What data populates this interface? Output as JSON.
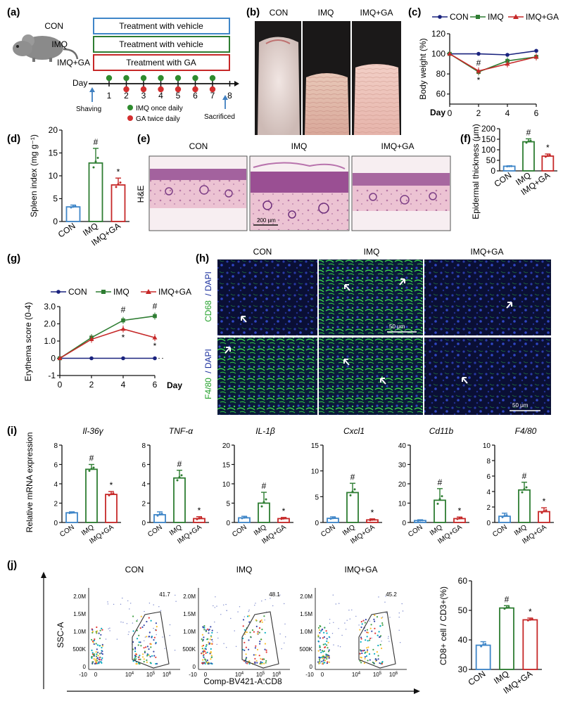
{
  "panels": {
    "a": {
      "label": "(a)",
      "groups": [
        {
          "name": "CON",
          "treatment": "Treatment with vehicle",
          "color": "#3f86c8"
        },
        {
          "name": "IMQ",
          "treatment": "Treatment with vehicle",
          "color": "#2e7d32"
        },
        {
          "name": "IMQ+GA",
          "treatment": "Treatment with GA",
          "color": "#c62828"
        }
      ],
      "day_label": "Day",
      "days": [
        "1",
        "2",
        "3",
        "4",
        "5",
        "6",
        "7",
        "8"
      ],
      "shaving": "Shaving",
      "sacrificed": "Sacrificed",
      "legend_imq": "IMQ once daily",
      "legend_ga": "GA twice daily"
    },
    "b": {
      "label": "(b)",
      "titles": [
        "CON",
        "IMQ",
        "IMQ+GA"
      ]
    },
    "c": {
      "label": "(c)"
    },
    "d": {
      "label": "(d)"
    },
    "e": {
      "label": "(e)",
      "titles": [
        "CON",
        "IMQ",
        "IMQ+GA"
      ],
      "stain": "H&E",
      "scale": "200 μm"
    },
    "f": {
      "label": "(f)"
    },
    "g": {
      "label": "(g)"
    },
    "h": {
      "label": "(h)",
      "titles": [
        "CON",
        "IMQ",
        "IMQ+GA"
      ],
      "row1_marker": "CD68",
      "row2_marker": "F4/80",
      "counterstain": "/ DAPI",
      "scale": "50 μm"
    },
    "i": {
      "label": "(i)"
    },
    "j": {
      "label": "(j)",
      "titles": [
        "CON",
        "IMQ",
        "IMQ+GA"
      ],
      "gate_values": [
        "41.7",
        "48.1",
        "45.2"
      ],
      "yaxis": "SSC-A",
      "xaxis": "Comp-BV421-A:CD8",
      "y_ticks": [
        "2.0M",
        "1.5M",
        "1.0M",
        "500K",
        "0"
      ],
      "x_ticks": [
        "-10",
        "0",
        "10",
        "10",
        "10"
      ],
      "x_ticks_exp": [
        "4",
        "5",
        "6"
      ]
    }
  },
  "chart_data": [
    {
      "id": "c",
      "type": "line",
      "title": "",
      "xlabel": "Day",
      "ylabel": "Body weight (%)",
      "x": [
        0,
        2,
        4,
        6
      ],
      "ylim": [
        50,
        120
      ],
      "x_ticks": [
        "0",
        "2",
        "4",
        "6"
      ],
      "y_ticks": [
        "60",
        "80",
        "100",
        "120"
      ],
      "series": [
        {
          "name": "CON",
          "color": "#1a237e",
          "values": [
            100,
            100,
            99,
            103
          ]
        },
        {
          "name": "IMQ",
          "color": "#2e7d32",
          "values": [
            100,
            82,
            93,
            97
          ]
        },
        {
          "name": "IMQ+GA",
          "color": "#c62828",
          "values": [
            100,
            83,
            90,
            97
          ]
        }
      ],
      "annotations": [
        {
          "x": 2,
          "text": "#"
        },
        {
          "x": 2,
          "text": "*"
        }
      ]
    },
    {
      "id": "d",
      "type": "bar",
      "ylabel": "Spleen index (mg g⁻¹)",
      "categories": [
        "CON",
        "IMQ",
        "IMQ+GA"
      ],
      "values": [
        3.2,
        12.8,
        8.0
      ],
      "errors": [
        0.4,
        3.2,
        1.5
      ],
      "ylim": [
        0,
        20
      ],
      "y_ticks": [
        "0",
        "5",
        "10",
        "15",
        "20"
      ],
      "marks": [
        "",
        "#",
        "*"
      ]
    },
    {
      "id": "f",
      "type": "bar",
      "ylabel": "Epidermal thickness (μm)",
      "categories": [
        "CON",
        "IMQ",
        "IMQ+GA"
      ],
      "values": [
        22,
        138,
        70
      ],
      "errors": [
        2,
        14,
        10
      ],
      "ylim": [
        0,
        200
      ],
      "y_ticks": [
        "0",
        "50",
        "100",
        "150",
        "200"
      ],
      "marks": [
        "",
        "#",
        "*"
      ]
    },
    {
      "id": "g",
      "type": "line",
      "xlabel": "Day",
      "ylabel": "Erythema score (0-4)",
      "x": [
        0,
        2,
        4,
        6
      ],
      "ylim": [
        -1,
        3
      ],
      "x_ticks": [
        "0",
        "2",
        "4",
        "6"
      ],
      "y_ticks": [
        "-1",
        "0",
        "1.0",
        "2.0",
        "3.0"
      ],
      "series": [
        {
          "name": "CON",
          "color": "#1a237e",
          "values": [
            0,
            0,
            0,
            0
          ]
        },
        {
          "name": "IMQ",
          "color": "#2e7d32",
          "values": [
            0,
            1.2,
            2.2,
            2.45
          ]
        },
        {
          "name": "IMQ+GA",
          "color": "#c62828",
          "values": [
            0,
            1.1,
            1.7,
            1.2
          ]
        }
      ],
      "annotations": [
        {
          "x": 4,
          "text": "#"
        },
        {
          "x": 6,
          "text": "#"
        },
        {
          "x": 4,
          "text": "*"
        },
        {
          "x": 6,
          "text": "*"
        }
      ]
    },
    {
      "id": "i",
      "type": "bar",
      "ylabel": "Relative mRNA expression",
      "categories": [
        "CON",
        "IMQ",
        "IMQ+GA"
      ],
      "subplots": [
        {
          "gene": "Il-36γ",
          "values": [
            1.0,
            5.5,
            2.9
          ],
          "errors": [
            0.1,
            0.5,
            0.3
          ],
          "ymax": 8,
          "ticks": [
            "0",
            "2",
            "4",
            "6",
            "8"
          ]
        },
        {
          "gene": "TNF-α",
          "values": [
            0.8,
            4.6,
            0.4
          ],
          "errors": [
            0.3,
            0.8,
            0.2
          ],
          "ymax": 8,
          "ticks": [
            "0",
            "2",
            "4",
            "6",
            "8"
          ]
        },
        {
          "gene": "IL-1β",
          "values": [
            1.2,
            5.0,
            1.0
          ],
          "errors": [
            0.4,
            2.8,
            0.3
          ],
          "ymax": 20,
          "ticks": [
            "0",
            "5",
            "10",
            "15",
            "20"
          ]
        },
        {
          "gene": "Cxcl1",
          "values": [
            0.8,
            5.8,
            0.5
          ],
          "errors": [
            0.3,
            1.8,
            0.2
          ],
          "ymax": 15,
          "ticks": [
            "0",
            "5",
            "10",
            "15"
          ]
        },
        {
          "gene": "Cd11b",
          "values": [
            1.0,
            11.5,
            2.0
          ],
          "errors": [
            0.4,
            6.0,
            0.8
          ],
          "ymax": 40,
          "ticks": [
            "0",
            "10",
            "20",
            "30",
            "40"
          ]
        },
        {
          "gene": "F4/80",
          "values": [
            0.8,
            4.2,
            1.4
          ],
          "errors": [
            0.4,
            1.0,
            0.5
          ],
          "ymax": 10,
          "ticks": [
            "0",
            "2",
            "4",
            "6",
            "8",
            "10"
          ]
        }
      ],
      "marks": [
        "",
        "#",
        "*"
      ]
    },
    {
      "id": "j",
      "type": "bar",
      "ylabel": "CD8+ cell / CD3+(%)",
      "categories": [
        "CON",
        "IMQ",
        "IMQ+GA"
      ],
      "values": [
        38.2,
        50.8,
        46.8
      ],
      "errors": [
        1.2,
        0.8,
        0.6
      ],
      "ylim": [
        30,
        60
      ],
      "y_ticks": [
        "30",
        "40",
        "50",
        "60"
      ],
      "marks": [
        "",
        "#",
        "*"
      ]
    }
  ]
}
